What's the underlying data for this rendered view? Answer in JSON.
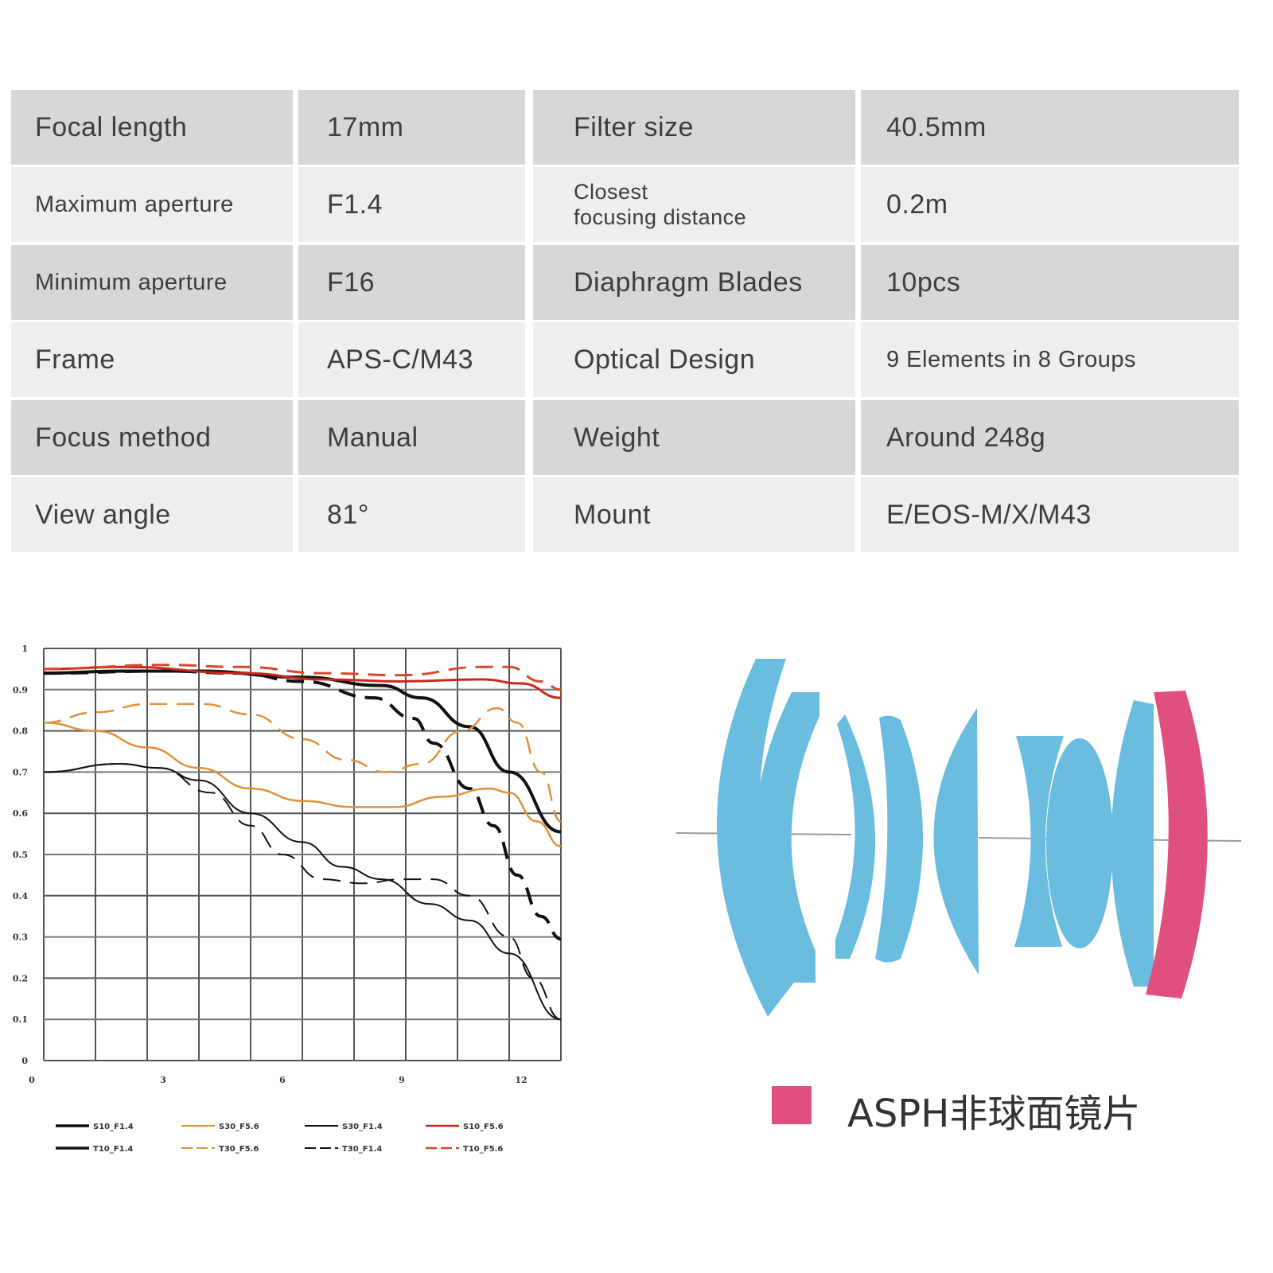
{
  "specs": [
    {
      "label": "Focal length",
      "value": "17mm",
      "label2": "Filter size",
      "value2": "40.5mm"
    },
    {
      "label": "Maximum aperture",
      "value": "F1.4",
      "label2": "Closest\nfocusing distance",
      "value2": "0.2m"
    },
    {
      "label": "Minimum aperture",
      "value": "F16",
      "label2": "Diaphragm Blades",
      "value2": "10pcs"
    },
    {
      "label": "Frame",
      "value": "APS-C/M43",
      "label2": "Optical Design",
      "value2": "9 Elements in 8 Groups"
    },
    {
      "label": "Focus method",
      "value": "Manual",
      "label2": "Weight",
      "value2": "Around 248g"
    },
    {
      "label": "View angle",
      "value": "81°",
      "label2": "Mount",
      "value2": "E/EOS-M/X/M43"
    }
  ],
  "colors": {
    "row_dark": "#d8d7d6",
    "row_light": "#eeeeee",
    "lens_element": "#6bbde0",
    "asph_element": "#e0507f"
  },
  "chart_data": {
    "type": "line",
    "title": "",
    "xlabel": "",
    "ylabel": "",
    "xlim": [
      0,
      13
    ],
    "ylim": [
      0,
      1
    ],
    "grid": true,
    "legend_placement": "bottom",
    "x_ticks": [
      "0",
      "3",
      "6",
      "9",
      "12"
    ],
    "x_tick_values": [
      0,
      3,
      6,
      9,
      12
    ],
    "y_ticks": [
      "0",
      "0.1",
      "0.2",
      "0.3",
      "0.4",
      "0.5",
      "0.6",
      "0.7",
      "0.8",
      "0.9",
      "1"
    ],
    "series": [
      {
        "name": "S10_F1.4",
        "color": "#111111",
        "dash": false,
        "width": 4,
        "points": [
          [
            0,
            0.94
          ],
          [
            2,
            0.945
          ],
          [
            3.9,
            0.945
          ],
          [
            6.5,
            0.93
          ],
          [
            8.5,
            0.91
          ],
          [
            9.5,
            0.88
          ],
          [
            10.7,
            0.81
          ],
          [
            11.7,
            0.7
          ],
          [
            13,
            0.555
          ]
        ]
      },
      {
        "name": "T10_F1.4",
        "color": "#111111",
        "dash": true,
        "width": 4,
        "points": [
          [
            0,
            0.94
          ],
          [
            3,
            0.945
          ],
          [
            4.9,
            0.94
          ],
          [
            6.5,
            0.92
          ],
          [
            8.3,
            0.88
          ],
          [
            9.3,
            0.83
          ],
          [
            9.8,
            0.77
          ],
          [
            10.7,
            0.66
          ],
          [
            11.3,
            0.57
          ],
          [
            11.9,
            0.45
          ],
          [
            12.5,
            0.35
          ],
          [
            13,
            0.295
          ]
        ]
      },
      {
        "name": "S30_F1.4",
        "color": "#111111",
        "dash": false,
        "width": 2,
        "points": [
          [
            0,
            0.7
          ],
          [
            1.9,
            0.72
          ],
          [
            2.9,
            0.71
          ],
          [
            3.9,
            0.68
          ],
          [
            5.2,
            0.6
          ],
          [
            6.5,
            0.53
          ],
          [
            7.5,
            0.47
          ],
          [
            8.5,
            0.44
          ],
          [
            9.7,
            0.38
          ],
          [
            10.7,
            0.34
          ],
          [
            11.7,
            0.26
          ],
          [
            13,
            0.1
          ]
        ]
      },
      {
        "name": "T30_F1.4",
        "color": "#111111",
        "dash": true,
        "width": 2,
        "points": [
          [
            0,
            0.7
          ],
          [
            1.9,
            0.72
          ],
          [
            2.9,
            0.71
          ],
          [
            4.2,
            0.65
          ],
          [
            5.2,
            0.57
          ],
          [
            6.0,
            0.5
          ],
          [
            7.0,
            0.44
          ],
          [
            8.0,
            0.43
          ],
          [
            9.0,
            0.44
          ],
          [
            9.8,
            0.44
          ],
          [
            10.7,
            0.4
          ],
          [
            11.7,
            0.3
          ],
          [
            12.3,
            0.2
          ],
          [
            13,
            0.1
          ]
        ]
      },
      {
        "name": "S30_F5.6",
        "color": "#e0913a",
        "dash": false,
        "width": 2.5,
        "points": [
          [
            0,
            0.82
          ],
          [
            1.3,
            0.8
          ],
          [
            2.6,
            0.76
          ],
          [
            3.9,
            0.71
          ],
          [
            5.2,
            0.66
          ],
          [
            6.5,
            0.63
          ],
          [
            7.8,
            0.615
          ],
          [
            8.8,
            0.615
          ],
          [
            10,
            0.64
          ],
          [
            11.2,
            0.66
          ],
          [
            11.7,
            0.65
          ],
          [
            12.4,
            0.58
          ],
          [
            13,
            0.52
          ]
        ]
      },
      {
        "name": "T30_F5.6",
        "color": "#e0913a",
        "dash": true,
        "width": 2.5,
        "points": [
          [
            0,
            0.82
          ],
          [
            1.3,
            0.845
          ],
          [
            2.6,
            0.865
          ],
          [
            4.0,
            0.865
          ],
          [
            5.2,
            0.84
          ],
          [
            6.5,
            0.78
          ],
          [
            7.6,
            0.73
          ],
          [
            8.6,
            0.7
          ],
          [
            9.5,
            0.72
          ],
          [
            10.5,
            0.8
          ],
          [
            11.4,
            0.855
          ],
          [
            11.9,
            0.82
          ],
          [
            12.5,
            0.7
          ],
          [
            13,
            0.58
          ]
        ]
      },
      {
        "name": "S10_F5.6",
        "color": "#c8281e",
        "dash": false,
        "width": 3,
        "points": [
          [
            0,
            0.95
          ],
          [
            2,
            0.955
          ],
          [
            5,
            0.94
          ],
          [
            7,
            0.925
          ],
          [
            9,
            0.92
          ],
          [
            11,
            0.925
          ],
          [
            12,
            0.915
          ],
          [
            13,
            0.88
          ]
        ]
      },
      {
        "name": "T10_F5.6",
        "color": "#d8482a",
        "dash": true,
        "width": 3,
        "points": [
          [
            0,
            0.95
          ],
          [
            3,
            0.96
          ],
          [
            5,
            0.955
          ],
          [
            7,
            0.94
          ],
          [
            9,
            0.935
          ],
          [
            11,
            0.955
          ],
          [
            11.7,
            0.955
          ],
          [
            12.5,
            0.92
          ],
          [
            13,
            0.9
          ]
        ]
      }
    ],
    "legend_rows": [
      [
        "S10_F1.4",
        "S30_F5.6",
        "S30_F1.4",
        "S10_F5.6"
      ],
      [
        "T10_F1.4",
        "T30_F5.6",
        "T30_F1.4",
        "T10_F5.6"
      ]
    ]
  },
  "lens_diagram": {
    "legend_label": "ASPH非球面镜片",
    "elements": [
      "spherical",
      "spherical",
      "spherical",
      "spherical",
      "spherical",
      "spherical",
      "spherical",
      "spherical",
      "aspherical"
    ]
  }
}
